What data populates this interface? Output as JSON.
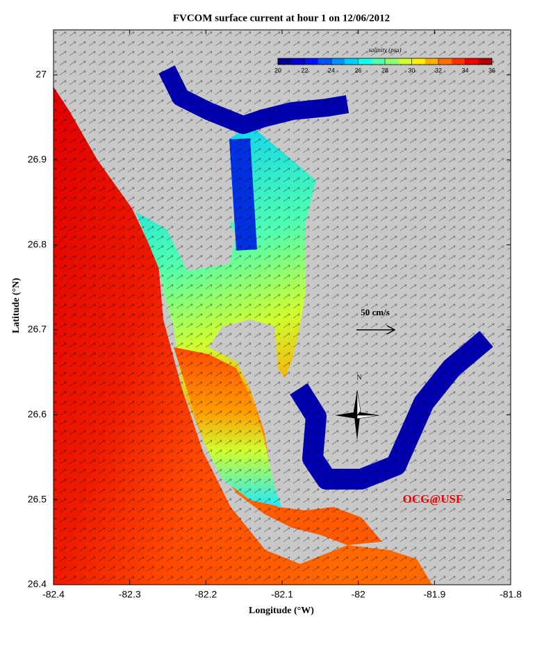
{
  "title": "FVCOM surface current at hour 1 on 12/06/2012",
  "x_axis": {
    "label": "Longitude (°W)",
    "lim": [
      -82.4,
      -81.8
    ],
    "ticks": [
      -82.4,
      -82.3,
      -82.2,
      -82.1,
      -82,
      -81.9,
      -81.8
    ]
  },
  "y_axis": {
    "label": "Latitude (°N)",
    "lim": [
      26.4,
      27.053
    ],
    "ticks": [
      26.4,
      26.5,
      26.6,
      26.7,
      26.8,
      26.9,
      27
    ]
  },
  "colorbar": {
    "label": "salinity (psu)",
    "lim": [
      20,
      36
    ],
    "ticks": [
      20,
      22,
      24,
      26,
      28,
      30,
      32,
      34,
      36
    ],
    "colors": [
      "#00008f",
      "#0000cf",
      "#0010ff",
      "#0050ff",
      "#0090ff",
      "#00cfff",
      "#10ffef",
      "#50ffaf",
      "#90ff6f",
      "#cfff30",
      "#ffef00",
      "#ffaf00",
      "#ff7000",
      "#ff3000",
      "#ef0000",
      "#af0000"
    ]
  },
  "scale_label": "50 cm/s",
  "compass": "N",
  "credit": "OCG@USF"
}
